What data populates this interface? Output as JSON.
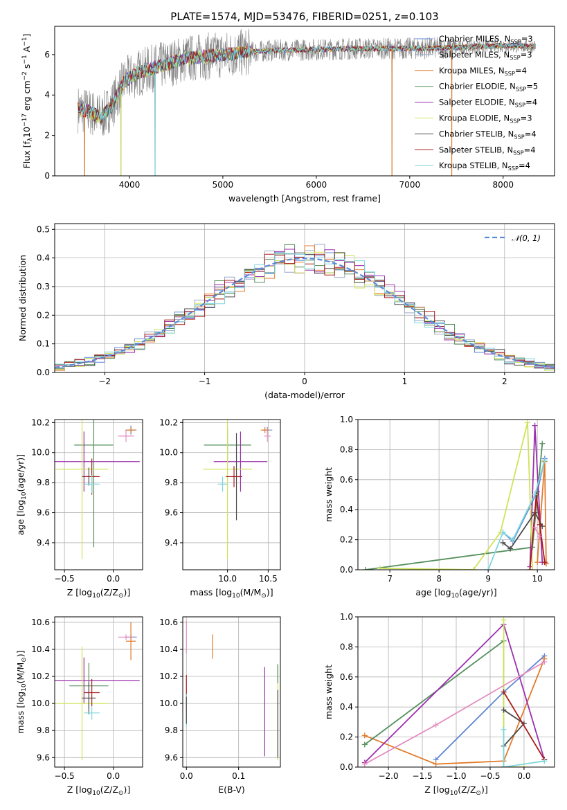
{
  "figure": {
    "title": "PLATE=1574, MJD=53476, FIBERID=0251, z=0.103"
  },
  "colors": {
    "data": "#7f7f7f",
    "models": [
      "#5f86d6",
      "#9aa8c6",
      "#e07b2c",
      "#548f5c",
      "#9b2fad",
      "#cfe35a",
      "#4a4a4a",
      "#a81d1d",
      "#7fd6de"
    ],
    "normal": "#5b8ad8",
    "pink": "#e38fc1",
    "grid": "#b0b0b0"
  },
  "legend_models": [
    {
      "name": "Chabrier MILES, N",
      "sub": "SSP",
      "tail": "=3"
    },
    {
      "name": "Salpeter MILES, N",
      "sub": "SSP",
      "tail": "=3"
    },
    {
      "name": "Kroupa MILES, N",
      "sub": "SSP",
      "tail": "=4"
    },
    {
      "name": "Chabrier ELODIE, N",
      "sub": "SSP",
      "tail": "=5"
    },
    {
      "name": "Salpeter ELODIE, N",
      "sub": "SSP",
      "tail": "=4"
    },
    {
      "name": "Kroupa ELODIE, N",
      "sub": "SSP",
      "tail": "=3"
    },
    {
      "name": "Chabrier STELIB, N",
      "sub": "SSP",
      "tail": "=4"
    },
    {
      "name": "Salpeter STELIB, N",
      "sub": "SSP",
      "tail": "=4"
    },
    {
      "name": "Kroupa STELIB, N",
      "sub": "SSP",
      "tail": "=4"
    }
  ],
  "chart_data": [
    {
      "id": "spectrum",
      "type": "line",
      "xlabel": "wavelength [Angstrom, rest frame]",
      "ylabel": {
        "pre": "Flux [f",
        "sub": "λ",
        "mid": "10",
        "sup1": "−17",
        "mid2": " erg cm",
        "sup2": "−2",
        "mid3": " s",
        "sup3": "−1",
        "mid4": " A",
        "sup4": "−1",
        "post": "]"
      },
      "xlim": [
        3200,
        8550
      ],
      "ylim": [
        0,
        7.4
      ],
      "xticks": [
        4000,
        5000,
        6000,
        7000,
        8000
      ],
      "yticks": [
        0,
        2,
        4,
        6
      ],
      "continuum": [
        [
          3450,
          3.3
        ],
        [
          3550,
          3.2
        ],
        [
          3700,
          2.9
        ],
        [
          3800,
          3.4
        ],
        [
          3950,
          4.7
        ],
        [
          4100,
          5.1
        ],
        [
          4300,
          5.4
        ],
        [
          4600,
          5.8
        ],
        [
          5000,
          6.0
        ],
        [
          5500,
          6.2
        ],
        [
          6000,
          6.25
        ],
        [
          6500,
          6.3
        ],
        [
          7000,
          6.3
        ],
        [
          7500,
          6.35
        ],
        [
          8000,
          6.45
        ],
        [
          8350,
          6.4
        ]
      ],
      "dropouts": [
        {
          "x": 3520,
          "y": 0
        },
        {
          "x": 3910,
          "y": 0
        },
        {
          "x": 4275,
          "y": 0
        },
        {
          "x": 6810,
          "y": 0
        },
        {
          "x": 7450,
          "y": 0
        }
      ]
    },
    {
      "id": "residuals",
      "type": "histogram",
      "xlabel": "(data-model)/error",
      "ylabel": "Normed distribution",
      "xlim": [
        -2.5,
        2.5
      ],
      "ylim": [
        0,
        0.52
      ],
      "xticks": [
        -2,
        -1,
        0,
        1,
        2
      ],
      "yticks": [
        0,
        0.1,
        0.2,
        0.3,
        0.4,
        0.5
      ],
      "reference": {
        "label": "𝒩(0, 1)",
        "mean": 0,
        "sigma": 1
      },
      "bin_width": 0.1
    },
    {
      "id": "age-vs-Z",
      "type": "errorbar",
      "xlabel": {
        "pre": "Z [log",
        "sub": "10",
        "post": "(Z/Z",
        "sub2": "⊙",
        "post2": ")]"
      },
      "ylabel": {
        "pre": "age  [log",
        "sub": "10",
        "post": "(age/yr)]"
      },
      "xlim": [
        -0.6,
        0.3
      ],
      "ylim": [
        9.22,
        10.22
      ],
      "xticks": [
        -0.5,
        0.0
      ],
      "xticklabels": [
        "−0.5",
        "0.0"
      ],
      "yticks": [
        9.4,
        9.6,
        9.8,
        10.0,
        10.2
      ],
      "points": [
        {
          "x": 0.18,
          "y": 10.15,
          "xerr": 0.05,
          "yerr": 0.03,
          "color": 0
        },
        {
          "x": 0.18,
          "y": 10.15,
          "xerr": 0.06,
          "yerr": 0.02,
          "color": 1
        },
        {
          "x": 0.18,
          "y": 10.15,
          "xerr": 0.05,
          "yerr": 0.02,
          "color": 2
        },
        {
          "x": -0.2,
          "y": 10.05,
          "xerr": 0.2,
          "yerr": 0.68,
          "color": 3
        },
        {
          "x": -0.3,
          "y": 9.94,
          "xerr": 0.57,
          "yerr": 0.2,
          "color": 4
        },
        {
          "x": -0.32,
          "y": 9.89,
          "xerr": 0.27,
          "yerr": 0.6,
          "color": 5
        },
        {
          "x": -0.25,
          "y": 9.84,
          "xerr": 0.07,
          "yerr": 0.06,
          "color": 6
        },
        {
          "x": -0.22,
          "y": 9.84,
          "xerr": 0.08,
          "yerr": 0.12,
          "color": 7
        },
        {
          "x": -0.22,
          "y": 9.79,
          "xerr": 0.08,
          "yerr": 0.06,
          "color": 8
        },
        {
          "x": 0.13,
          "y": 10.11,
          "xerr": 0.08,
          "yerr": 0.04,
          "color": "pink"
        }
      ]
    },
    {
      "id": "age-vs-mass",
      "type": "errorbar",
      "xlabel": {
        "pre": "mass [log",
        "sub": "10",
        "post": "(M/M",
        "sub2": "⊙",
        "post2": ")]"
      },
      "ylabel": "",
      "xlim": [
        9.45,
        10.65
      ],
      "ylim": [
        9.22,
        10.22
      ],
      "xticks": [
        10.0,
        10.5
      ],
      "xticklabels": [
        "10.0",
        "10.5"
      ],
      "yticks": [
        9.4,
        9.6,
        9.8,
        10.0,
        10.2
      ],
      "points": [
        {
          "x": 10.49,
          "y": 10.15,
          "xerr": 0.06,
          "yerr": 0.02,
          "color": 0
        },
        {
          "x": 10.49,
          "y": 10.15,
          "xerr": 0.05,
          "yerr": 0.02,
          "color": 1
        },
        {
          "x": 10.46,
          "y": 10.15,
          "xerr": 0.05,
          "yerr": 0.02,
          "color": 2
        },
        {
          "x": 10.0,
          "y": 10.05,
          "xerr": 0.29,
          "yerr": 0.12,
          "color": 3
        },
        {
          "x": 10.16,
          "y": 9.94,
          "xerr": 0.33,
          "yerr": 0.2,
          "color": 4
        },
        {
          "x": 10.0,
          "y": 9.89,
          "xerr": 0.3,
          "yerr": 0.6,
          "color": 5
        },
        {
          "x": 10.11,
          "y": 9.84,
          "xerr": 0.06,
          "yerr": 0.29,
          "color": 6
        },
        {
          "x": 10.08,
          "y": 9.84,
          "xerr": 0.1,
          "yerr": 0.07,
          "color": 7
        },
        {
          "x": 9.94,
          "y": 9.79,
          "xerr": 0.06,
          "yerr": 0.05,
          "color": 8
        },
        {
          "x": 10.49,
          "y": 10.11,
          "xerr": 0.04,
          "yerr": 0.04,
          "color": "pink"
        }
      ]
    },
    {
      "id": "mass-weight-vs-age",
      "type": "line",
      "xlabel": {
        "pre": "age  [log",
        "sub": "10",
        "post": "(age/yr)]"
      },
      "ylabel": "mass weight",
      "xlim": [
        6.35,
        10.35
      ],
      "ylim": [
        0,
        1.0
      ],
      "xticks": [
        7,
        8,
        9,
        10
      ],
      "yticks": [
        0.0,
        0.2,
        0.4,
        0.6,
        0.8,
        1.0
      ],
      "series": [
        {
          "color": 0,
          "x": [
            9.3,
            9.5,
            10.0,
            10.15
          ],
          "y": [
            0.25,
            0.19,
            0.52,
            0.74
          ]
        },
        {
          "color": 1,
          "x": [
            10.15,
            10.18
          ],
          "y": [
            0.05,
            0.04
          ]
        },
        {
          "color": 2,
          "x": [
            10.0,
            10.15,
            10.18
          ],
          "y": [
            0.05,
            0.72,
            0.04
          ]
        },
        {
          "color": 3,
          "x": [
            6.5,
            9.9,
            10.1
          ],
          "y": [
            0.0,
            0.15,
            0.84
          ]
        },
        {
          "color": 4,
          "x": [
            9.85,
            9.95,
            10.1
          ],
          "y": [
            0.02,
            0.96,
            0.05
          ]
        },
        {
          "color": 5,
          "x": [
            6.8,
            8.7,
            9.25,
            9.8,
            9.9
          ],
          "y": [
            0.01,
            0.0,
            0.25,
            0.98,
            0.0
          ]
        },
        {
          "color": 6,
          "x": [
            9.3,
            9.45,
            9.95,
            10.1
          ],
          "y": [
            0.18,
            0.14,
            0.38,
            0.29
          ]
        },
        {
          "color": 7,
          "x": [
            9.85,
            9.98,
            10.05,
            10.15
          ],
          "y": [
            0.0,
            0.5,
            0.3,
            0.05
          ]
        },
        {
          "color": 8,
          "x": [
            9.0,
            9.3,
            9.5,
            9.95,
            10.15
          ],
          "y": [
            0.0,
            0.25,
            0.2,
            0.5,
            0.73
          ]
        },
        {
          "color": "pink",
          "x": [
            9.95,
            10.05
          ],
          "y": [
            0.28,
            0.22
          ]
        }
      ]
    },
    {
      "id": "mass-vs-Z",
      "type": "errorbar",
      "xlabel": {
        "pre": "Z [log",
        "sub": "10",
        "post": "(Z/Z",
        "sub2": "⊙",
        "post2": ")]"
      },
      "ylabel": {
        "pre": "mass [log",
        "sub": "10",
        "post": "(M/M",
        "sub2": "⊙",
        "post2": ")]"
      },
      "xlim": [
        -0.6,
        0.3
      ],
      "ylim": [
        9.53,
        10.64
      ],
      "xticks": [
        -0.5,
        0.0
      ],
      "xticklabels": [
        "−0.5",
        "0.0"
      ],
      "yticks": [
        9.6,
        9.8,
        10.0,
        10.2,
        10.4,
        10.6
      ],
      "points": [
        {
          "x": 0.18,
          "y": 10.49,
          "xerr": 0.06,
          "yerr": 0.02,
          "color": 0
        },
        {
          "x": 0.18,
          "y": 10.49,
          "xerr": 0.05,
          "yerr": 0.02,
          "color": 1
        },
        {
          "x": 0.18,
          "y": 10.46,
          "xerr": 0.05,
          "yerr": 0.14,
          "color": 2
        },
        {
          "x": -0.25,
          "y": 10.13,
          "xerr": 0.2,
          "yerr": 0.17,
          "color": 3
        },
        {
          "x": -0.3,
          "y": 10.17,
          "xerr": 0.57,
          "yerr": 0.17,
          "color": 4
        },
        {
          "x": -0.32,
          "y": 10.0,
          "xerr": 0.27,
          "yerr": 0.42,
          "color": 5
        },
        {
          "x": -0.25,
          "y": 10.04,
          "xerr": 0.07,
          "yerr": 0.12,
          "color": 6
        },
        {
          "x": -0.22,
          "y": 10.08,
          "xerr": 0.08,
          "yerr": 0.1,
          "color": 7
        },
        {
          "x": -0.22,
          "y": 9.93,
          "xerr": 0.08,
          "yerr": 0.05,
          "color": 8
        },
        {
          "x": 0.13,
          "y": 10.49,
          "xerr": 0.08,
          "yerr": 0.02,
          "color": "pink"
        }
      ]
    },
    {
      "id": "mass-vs-EBV",
      "type": "errorbar",
      "xlabel": "E(B-V)",
      "ylabel": "",
      "xlim": [
        -0.007,
        0.18
      ],
      "ylim": [
        9.53,
        10.64
      ],
      "xticks": [
        0.0,
        0.1
      ],
      "xticklabels": [
        "0.0",
        "0.1"
      ],
      "yticks": [
        9.6,
        9.8,
        10.0,
        10.2,
        10.4,
        10.6
      ],
      "points": [
        {
          "x": 0.0,
          "y": 10.49,
          "xerr": 0,
          "yerr": 0.12,
          "color": "pink"
        },
        {
          "x": 0.05,
          "y": 10.42,
          "xerr": 0,
          "yerr": 0.09,
          "color": 2
        },
        {
          "x": 0.0,
          "y": 10.08,
          "xerr": 0,
          "yerr": 0.13,
          "color": 7
        },
        {
          "x": 0.0,
          "y": 9.95,
          "xerr": 0,
          "yerr": 0.12,
          "color": 8
        },
        {
          "x": 0.0,
          "y": 9.95,
          "xerr": 0,
          "yerr": 0.1,
          "color": 6
        },
        {
          "x": 0.15,
          "y": 9.94,
          "xerr": 0,
          "yerr": 0.33,
          "color": 4
        },
        {
          "x": 0.175,
          "y": 9.93,
          "xerr": 0,
          "yerr": 0.35,
          "color": 5
        },
        {
          "x": 0.175,
          "y": 10.22,
          "xerr": 0,
          "yerr": 0.07,
          "color": 3
        },
        {
          "x": 0.175,
          "y": 9.85,
          "xerr": 0,
          "yerr": 0.25,
          "color": 6
        }
      ]
    },
    {
      "id": "mass-weight-vs-Z",
      "type": "line",
      "xlabel": {
        "pre": "Z [log",
        "sub": "10",
        "post": "(Z/Z",
        "sub2": "⊙",
        "post2": ")]"
      },
      "ylabel": "mass weight",
      "xlim": [
        -2.45,
        0.45
      ],
      "ylim": [
        0,
        1.0
      ],
      "xticks": [
        -2.0,
        -1.5,
        -1.0,
        -0.5,
        0.0
      ],
      "xticklabels": [
        "−2.0",
        "−1.5",
        "−1.0",
        "−0.5",
        "0.0"
      ],
      "yticks": [
        0.0,
        0.2,
        0.4,
        0.6,
        0.8,
        1.0
      ],
      "series": [
        {
          "color": 0,
          "x": [
            -1.3,
            -0.3,
            0.3
          ],
          "y": [
            0.05,
            0.5,
            0.74
          ]
        },
        {
          "color": 2,
          "x": [
            -2.35,
            -1.3,
            -0.3,
            0.3
          ],
          "y": [
            0.21,
            0.02,
            0.04,
            0.72
          ]
        },
        {
          "color": 3,
          "x": [
            -2.35,
            -0.3,
            -0.3
          ],
          "y": [
            0.15,
            0.84,
            0.0
          ]
        },
        {
          "color": 4,
          "x": [
            -2.35,
            -0.3,
            0.3
          ],
          "y": [
            0.03,
            0.95,
            0.05
          ]
        },
        {
          "color": 5,
          "x": [
            -0.3,
            -0.3,
            0.0
          ],
          "y": [
            0.98,
            0.0,
            0.0
          ]
        },
        {
          "color": 6,
          "x": [
            -0.3,
            0.0,
            -0.3
          ],
          "y": [
            0.38,
            0.29,
            0.14
          ]
        },
        {
          "color": 7,
          "x": [
            -0.3,
            0.3
          ],
          "y": [
            0.5,
            0.05
          ]
        },
        {
          "color": 8,
          "x": [
            -0.3,
            -0.3,
            0.3
          ],
          "y": [
            0.25,
            0.0,
            0.04
          ]
        },
        {
          "color": "pink",
          "x": [
            -2.35,
            -1.3,
            0.3
          ],
          "y": [
            0.02,
            0.28,
            0.7
          ]
        }
      ]
    }
  ]
}
